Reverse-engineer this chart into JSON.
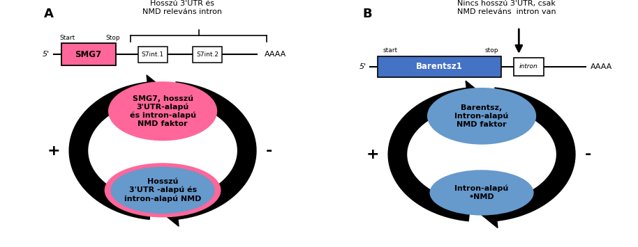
{
  "bg_color": "#ffffff",
  "panel_A": {
    "label": "A",
    "title": "Hosszú 3'UTR és\nNMD releváns intron",
    "top_ellipse_text": "SMG7, hosszú\n3'UTR-alapú\nés intron-alapú\nNMD faktor",
    "top_ellipse_color": "#FF6699",
    "bot_ellipse_text": "Hosszú\n3'UTR -alapú és\nintron-alapú NMD",
    "bot_ellipse_outer_color": "#FF6699",
    "bot_ellipse_inner_color": "#6699CC",
    "smg7_label": "SMG7",
    "smg7_color": "#FF6699",
    "s7int1_label": "S7int.1",
    "s7int2_label": "S7int.2",
    "start_label": "Start",
    "stop_label": "Stop",
    "aaaa_label": "AAAA",
    "five_prime_label": "5'"
  },
  "panel_B": {
    "label": "B",
    "title": "Nincs hosszú 3'UTR, csak\nNMD releváns  intron van",
    "top_ellipse_text": "Barentsz,\nIntron-alapú\nNMD faktor",
    "top_ellipse_color": "#6699CC",
    "bot_ellipse_text": "Intron-alapú\n•NMD",
    "bot_ellipse_color": "#6699CC",
    "barentsz_label": "Barentsz1",
    "barentsz_color": "#4472C4",
    "intron_label": "intron",
    "start_label": "start",
    "stop_label": "stop",
    "aaaa_label": "AAAA",
    "five_prime_label": "5'"
  }
}
